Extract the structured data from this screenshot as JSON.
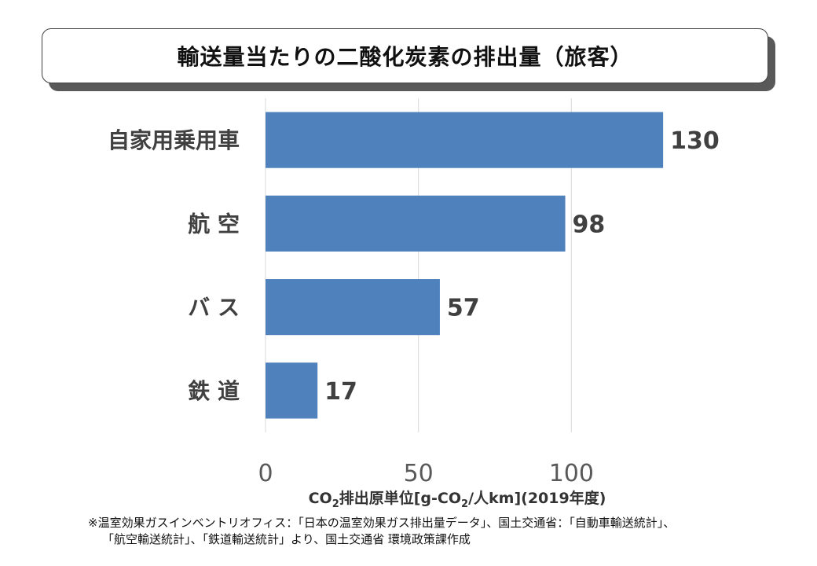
{
  "title": "輸送量当たりの二酸化炭素の排出量（旅客）",
  "chart_data": {
    "type": "bar",
    "orientation": "horizontal",
    "title": "輸送量当たりの二酸化炭素の排出量（旅客）",
    "categories": [
      "自家用乗用車",
      "航 空",
      "バ ス",
      "鉄 道"
    ],
    "values": [
      130,
      98,
      57,
      17
    ],
    "data_labels": [
      "130",
      "98",
      "57",
      "17"
    ],
    "xlim": [
      0,
      150
    ],
    "x_ticks": [
      0,
      50,
      100
    ],
    "x_tick_labels": [
      "0",
      "50",
      "100"
    ],
    "xlabel_parts": [
      "CO",
      "2",
      "排出原単位[g-CO",
      "2",
      "/人km](2019年度)"
    ],
    "grid": true,
    "bar_color": "#4f81bd"
  },
  "footnote": {
    "line1": "※温室効果ガスインベントリオフィス：「日本の温室効果ガス排出量データ」、国土交通省：「自動車輸送統計」、",
    "line2": "「航空輸送統計」、「鉄道輸送統計」より、国土交通省 環境政策課作成"
  }
}
